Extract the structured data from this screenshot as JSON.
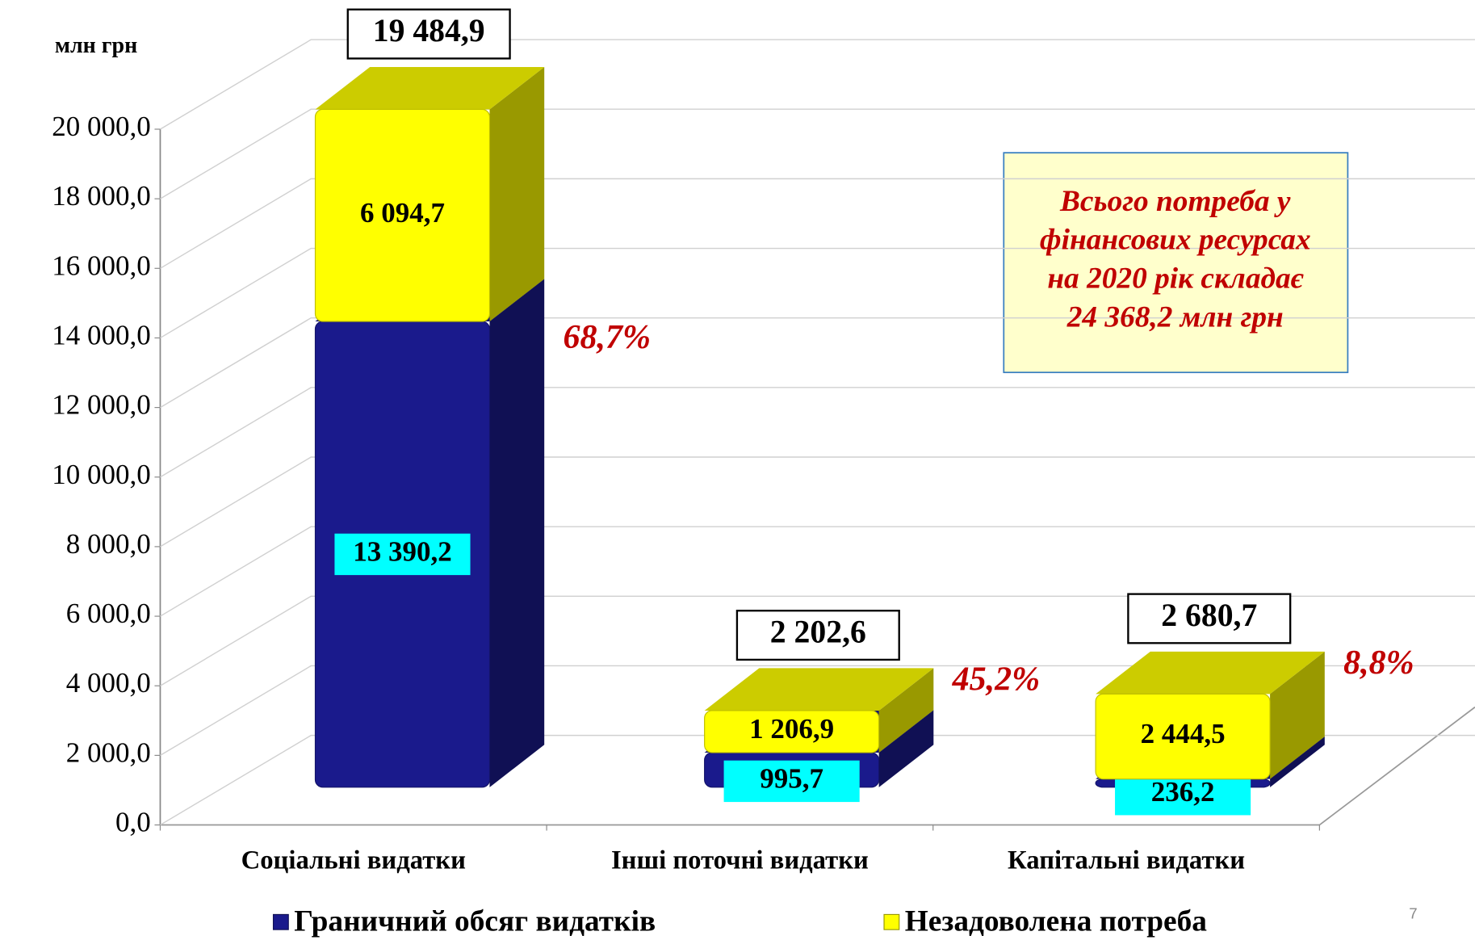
{
  "chart_data": {
    "type": "bar3d_stacked",
    "unit_label": "млн грн",
    "categories": [
      "Соціальні видатки",
      "Інші поточні видатки",
      "Капітальні видатки"
    ],
    "series": [
      {
        "name": "Граничний обсяг видатків",
        "color": "#1a1a8c",
        "values": [
          13390.2,
          995.7,
          236.2
        ],
        "value_labels": [
          "13 390,2",
          "995,7",
          "236,2"
        ]
      },
      {
        "name": "Незадоволена потреба",
        "color": "#ffff00",
        "values": [
          6094.7,
          1206.9,
          2444.5
        ],
        "value_labels": [
          "6 094,7",
          "1 206,9",
          "2 444,5"
        ]
      }
    ],
    "totals": {
      "values": [
        19484.9,
        2202.6,
        2680.7
      ],
      "value_labels": [
        "19 484,9",
        "2 202,6",
        "2 680,7"
      ]
    },
    "shares": {
      "values": [
        68.7,
        45.2,
        8.8
      ],
      "value_labels": [
        "68,7%",
        "45,2%",
        "8,8%"
      ]
    },
    "annotation": [
      "Всього потреба у",
      "фінансових ресурсах",
      "на 2020 рік складає",
      "24 368,2 млн грн"
    ],
    "page_number": "7",
    "ylim": [
      0,
      20000
    ],
    "yticks": [
      {
        "value": 0,
        "label": "0,0"
      },
      {
        "value": 2000,
        "label": "2 000,0"
      },
      {
        "value": 4000,
        "label": "4 000,0"
      },
      {
        "value": 6000,
        "label": "6 000,0"
      },
      {
        "value": 8000,
        "label": "8 000,0"
      },
      {
        "value": 10000,
        "label": "10 000,0"
      },
      {
        "value": 12000,
        "label": "12 000,0"
      },
      {
        "value": 14000,
        "label": "14 000,0"
      },
      {
        "value": 16000,
        "label": "16 000,0"
      },
      {
        "value": 18000,
        "label": "18 000,0"
      },
      {
        "value": 20000,
        "label": "20 000,0"
      }
    ],
    "grid": true
  }
}
